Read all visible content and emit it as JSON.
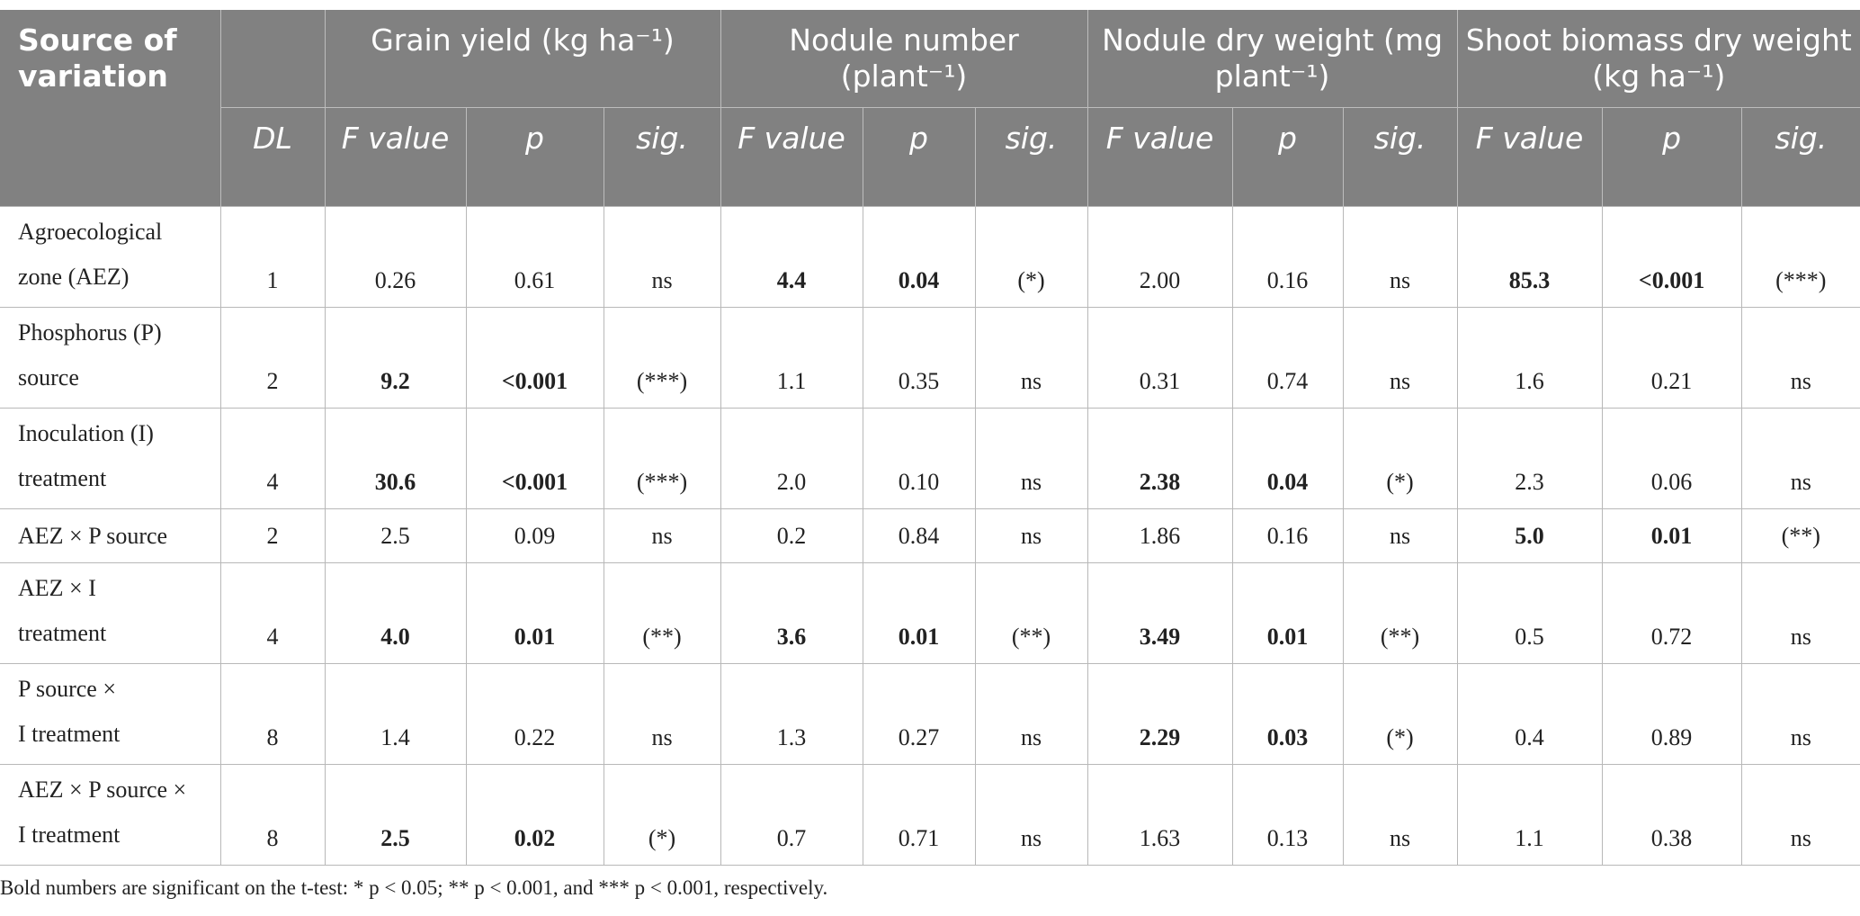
{
  "table": {
    "header": {
      "source": "Source of variation",
      "groups": [
        "Grain yield (kg ha⁻¹)",
        "Nodule number (plant⁻¹)",
        "Nodule dry weight (mg plant⁻¹)",
        "Shoot biomass dry weight (kg ha⁻¹)"
      ],
      "columns": [
        "DL",
        "F value",
        "p",
        "sig.",
        "F value",
        "p",
        "sig.",
        "F value",
        "p",
        "sig.",
        "F value",
        "p",
        "sig."
      ]
    },
    "rows": [
      {
        "source": "Agroecological\nzone (AEZ)",
        "cells": [
          "1",
          "0.26",
          "0.61",
          "ns",
          "4.4",
          "0.04",
          "(*)",
          "2.00",
          "0.16",
          "ns",
          "85.3",
          "<0.001",
          "(***)"
        ],
        "bold": [
          4,
          5,
          10,
          11
        ]
      },
      {
        "source": "Phosphorus (P)\nsource",
        "cells": [
          "2",
          "9.2",
          "<0.001",
          "(***)",
          "1.1",
          "0.35",
          "ns",
          "0.31",
          "0.74",
          "ns",
          "1.6",
          "0.21",
          "ns"
        ],
        "bold": [
          1,
          2
        ]
      },
      {
        "source": "Inoculation (I)\ntreatment",
        "cells": [
          "4",
          "30.6",
          "<0.001",
          "(***)",
          "2.0",
          "0.10",
          "ns",
          "2.38",
          "0.04",
          "(*)",
          "2.3",
          "0.06",
          "ns"
        ],
        "bold": [
          1,
          2,
          7,
          8
        ]
      },
      {
        "source": "AEZ × P source",
        "cells": [
          "2",
          "2.5",
          "0.09",
          "ns",
          "0.2",
          "0.84",
          "ns",
          "1.86",
          "0.16",
          "ns",
          "5.0",
          "0.01",
          "(**)"
        ],
        "bold": [
          10,
          11
        ]
      },
      {
        "source": "AEZ × I\ntreatment",
        "cells": [
          "4",
          "4.0",
          "0.01",
          "(**)",
          "3.6",
          "0.01",
          "(**)",
          "3.49",
          "0.01",
          "(**)",
          "0.5",
          "0.72",
          "ns"
        ],
        "bold": [
          1,
          2,
          4,
          5,
          7,
          8
        ]
      },
      {
        "source": "P source ×\nI treatment",
        "cells": [
          "8",
          "1.4",
          "0.22",
          "ns",
          "1.3",
          "0.27",
          "ns",
          "2.29",
          "0.03",
          "(*)",
          "0.4",
          "0.89",
          "ns"
        ],
        "bold": [
          7,
          8
        ]
      },
      {
        "source": "AEZ × P source ×\nI treatment",
        "cells": [
          "8",
          "2.5",
          "0.02",
          "(*)",
          "0.7",
          "0.71",
          "ns",
          "1.63",
          "0.13",
          "ns",
          "1.1",
          "0.38",
          "ns"
        ],
        "bold": [
          1,
          2
        ]
      }
    ]
  },
  "footnote": "Bold numbers are significant on the t-test: * p < 0.05; ** p < 0.001, and *** p < 0.001, respectively."
}
